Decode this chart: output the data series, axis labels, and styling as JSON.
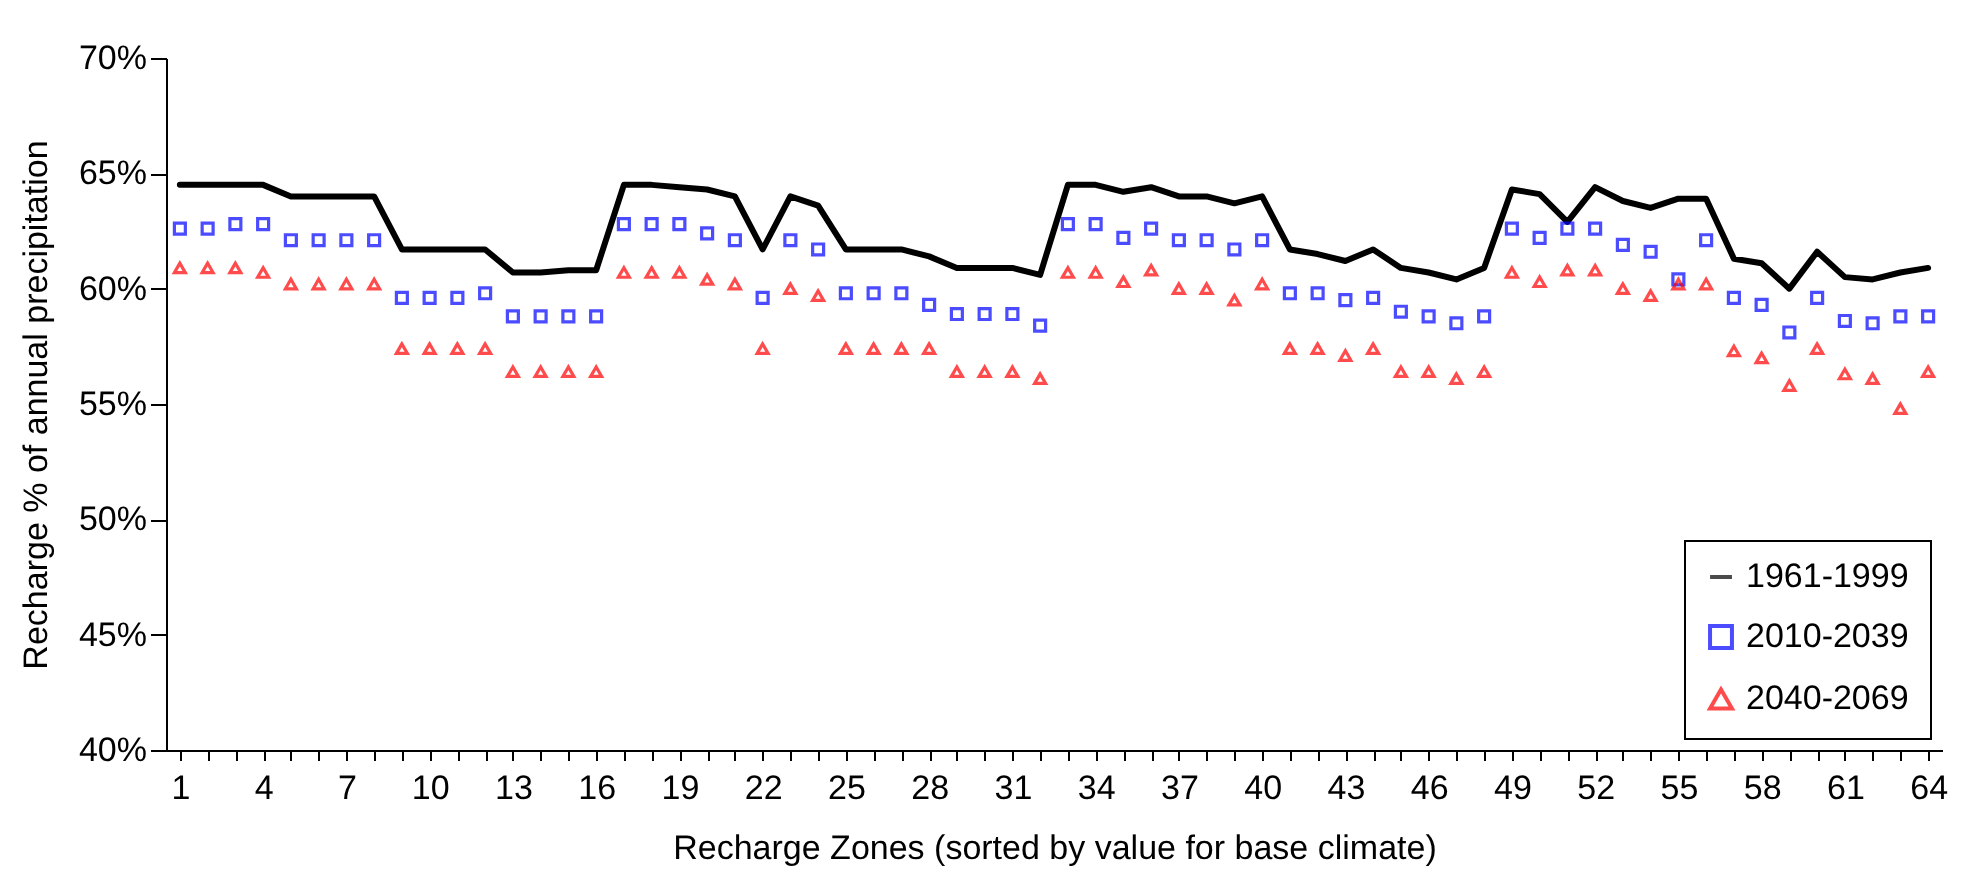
{
  "chart_data": {
    "type": "line",
    "xlabel": "Recharge Zones (sorted by value for base climate)",
    "ylabel": "Recharge % of annual precipitation",
    "categories": [
      "1",
      null,
      null,
      "4",
      null,
      null,
      "7",
      null,
      null,
      "10",
      null,
      null,
      "13",
      null,
      null,
      "16",
      null,
      null,
      "19",
      null,
      null,
      "22",
      null,
      null,
      "25",
      null,
      null,
      "28",
      null,
      null,
      "31",
      null,
      null,
      "34",
      null,
      null,
      "37",
      null,
      null,
      "40",
      null,
      null,
      "43",
      null,
      null,
      "46",
      null,
      null,
      "49",
      null,
      null,
      "52",
      null,
      null,
      "55",
      null,
      null,
      "58",
      null,
      null,
      "61",
      null,
      null,
      "64"
    ],
    "ylim": [
      40,
      70
    ],
    "yticks": [
      {
        "value": 40,
        "label": "40%"
      },
      {
        "value": 45,
        "label": "45%"
      },
      {
        "value": 50,
        "label": "50%"
      },
      {
        "value": 55,
        "label": "55%"
      },
      {
        "value": 60,
        "label": "60%"
      },
      {
        "value": 65,
        "label": "65%"
      },
      {
        "value": 70,
        "label": "70%"
      }
    ],
    "grid": false,
    "legend": "bottom right",
    "line_style": "solid",
    "series": [
      {
        "name": "1961-1999",
        "marker": "none",
        "color": "#000000",
        "values": [
          64.5,
          64.5,
          64.5,
          64.5,
          64.0,
          64.0,
          64.0,
          64.0,
          61.7,
          61.7,
          61.7,
          61.7,
          60.7,
          60.7,
          60.8,
          60.8,
          64.5,
          64.5,
          64.4,
          64.3,
          64.0,
          61.7,
          64.0,
          63.6,
          61.7,
          61.7,
          61.7,
          61.4,
          60.9,
          60.9,
          60.9,
          60.6,
          64.5,
          64.5,
          64.2,
          64.4,
          64.0,
          64.0,
          63.7,
          64.0,
          61.7,
          61.5,
          61.2,
          61.7,
          60.9,
          60.7,
          60.4,
          60.9,
          64.3,
          64.1,
          62.9,
          64.4,
          63.8,
          63.5,
          63.9,
          63.9,
          61.3,
          61.1,
          60.0,
          61.6,
          60.5,
          60.4,
          60.7,
          60.9
        ]
      },
      {
        "name": "2010-2039",
        "type": "scatter",
        "marker": "square",
        "color": "#0000ff",
        "values": [
          62.6,
          62.6,
          62.8,
          62.8,
          62.1,
          62.1,
          62.1,
          62.1,
          59.6,
          59.6,
          59.6,
          59.8,
          58.8,
          58.8,
          58.8,
          58.8,
          62.8,
          62.8,
          62.8,
          62.4,
          62.1,
          59.6,
          62.1,
          61.7,
          59.8,
          59.8,
          59.8,
          59.3,
          58.9,
          58.9,
          58.9,
          58.4,
          62.8,
          62.8,
          62.2,
          62.6,
          62.1,
          62.1,
          61.7,
          62.1,
          59.8,
          59.8,
          59.5,
          59.6,
          59.0,
          58.8,
          58.5,
          58.8,
          62.6,
          62.2,
          62.6,
          62.6,
          61.9,
          61.6,
          60.4,
          62.1,
          59.6,
          59.3,
          58.1,
          59.6,
          58.6,
          58.5,
          58.8,
          58.8
        ]
      },
      {
        "name": "2040-2069",
        "type": "scatter",
        "marker": "triangle",
        "color": "#ff0000",
        "values": [
          60.9,
          60.9,
          60.9,
          60.7,
          60.2,
          60.2,
          60.2,
          60.2,
          57.4,
          57.4,
          57.4,
          57.4,
          56.4,
          56.4,
          56.4,
          56.4,
          60.7,
          60.7,
          60.7,
          60.4,
          60.2,
          57.4,
          60.0,
          59.7,
          57.4,
          57.4,
          57.4,
          57.4,
          56.4,
          56.4,
          56.4,
          56.1,
          60.7,
          60.7,
          60.3,
          60.8,
          60.0,
          60.0,
          59.5,
          60.2,
          57.4,
          57.4,
          57.1,
          57.4,
          56.4,
          56.4,
          56.1,
          56.4,
          60.7,
          60.3,
          60.8,
          60.8,
          60.0,
          59.7,
          60.2,
          60.2,
          57.3,
          57.0,
          55.8,
          57.4,
          56.3,
          56.1,
          54.8,
          56.4
        ]
      }
    ]
  }
}
